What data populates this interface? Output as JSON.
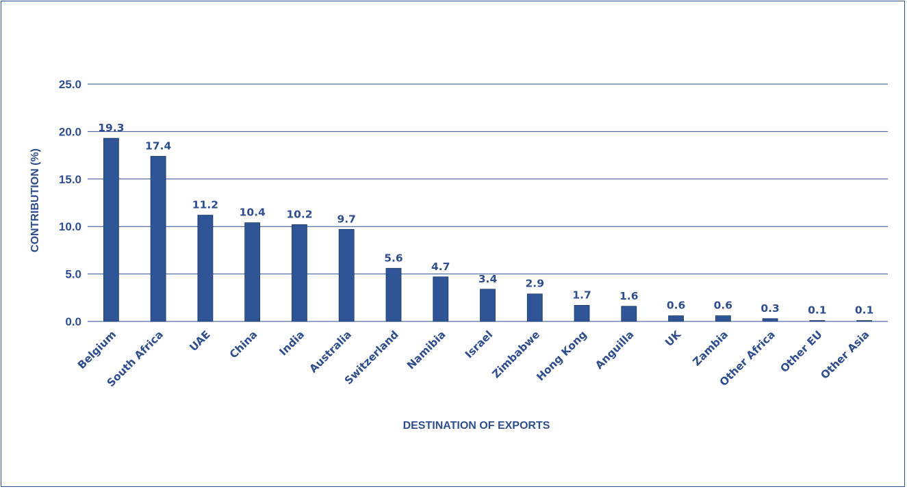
{
  "chart_data": {
    "type": "bar",
    "categories": [
      "Belgium",
      "South Africa",
      "UAE",
      "China",
      "India",
      "Australia",
      "Switzerland",
      "Namibia",
      "Israel",
      "Zimbabwe",
      "Hong Kong",
      "Anguilla",
      "UK",
      "Zambia",
      "Other Africa",
      "Other EU",
      "Other Asia"
    ],
    "values": [
      19.3,
      17.4,
      11.2,
      10.4,
      10.2,
      9.7,
      5.6,
      4.7,
      3.4,
      2.9,
      1.7,
      1.6,
      0.6,
      0.6,
      0.3,
      0.1,
      0.1
    ],
    "value_labels": [
      "19.3",
      "17.4",
      "11.2",
      "10.4",
      "10.2",
      "9.7",
      "5.6",
      "4.7",
      "3.4",
      "2.9",
      "1.7",
      "1.6",
      "0.6",
      "0.6",
      "0.3",
      "0.1",
      "0.1"
    ],
    "title": "",
    "xlabel": "DESTINATION OF EXPORTS",
    "ylabel": "CONTRIBUTION (%)",
    "ylim": [
      0,
      25
    ],
    "y_ticks": [
      0,
      5,
      10,
      15,
      20,
      25
    ],
    "y_tick_labels": [
      "0.0",
      "5.0",
      "10.0",
      "15.0",
      "20.0",
      "25.0"
    ],
    "grid": true,
    "legend": "none",
    "colors": {
      "bar": "#2f5597",
      "text": "#2f4e8f",
      "grid": "#2f4e8f",
      "frame": "#2f4e8f"
    }
  }
}
